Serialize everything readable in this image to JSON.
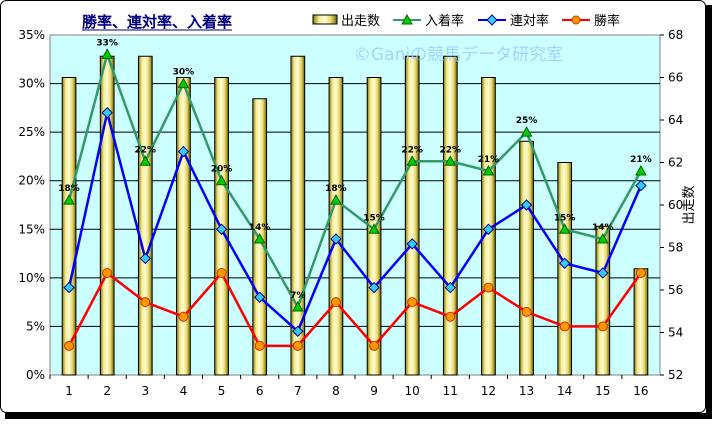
{
  "chart_data": {
    "type": "bar",
    "title": "勝率、連対率、入着率",
    "watermark": "©Ganiの競馬データ研究室",
    "categories": [
      "1",
      "2",
      "3",
      "4",
      "5",
      "6",
      "7",
      "8",
      "9",
      "10",
      "11",
      "12",
      "13",
      "14",
      "15",
      "16"
    ],
    "series": [
      {
        "name": "出走数",
        "type": "bar",
        "axis": "right",
        "color": "#ffff99",
        "values": [
          66,
          67,
          67,
          66,
          66,
          65,
          67,
          66,
          66,
          67,
          67,
          66,
          63,
          62,
          59,
          57
        ]
      },
      {
        "name": "入着率",
        "type": "line",
        "axis": "left",
        "color": "#339966",
        "values": [
          18,
          33,
          22,
          30,
          20,
          14,
          7,
          18,
          15,
          22,
          22,
          21,
          25,
          15,
          14,
          21
        ]
      },
      {
        "name": "連対率",
        "type": "line",
        "axis": "left",
        "color": "#0000ff",
        "values": [
          9,
          27,
          12,
          23,
          15,
          8,
          4.5,
          14,
          9,
          13.5,
          9,
          15,
          17.5,
          11.5,
          10.5,
          19.5
        ]
      },
      {
        "name": "勝率",
        "type": "line",
        "axis": "left",
        "color": "#ff0000",
        "values": [
          3,
          10.5,
          7.5,
          6,
          10.5,
          3,
          3,
          7.5,
          3,
          7.5,
          6,
          9,
          6.5,
          5,
          5,
          10.5
        ]
      }
    ],
    "data_labels": {
      "series": "入着率",
      "labels": [
        "18%",
        "33%",
        "22%",
        "30%",
        "20%",
        "14%",
        "7%",
        "18%",
        "15%",
        "22%",
        "22%",
        "21%",
        "25%",
        "15%",
        "14%",
        "21%"
      ]
    },
    "y_left": {
      "min": 0,
      "max": 35,
      "step": 5,
      "ticks": [
        "0%",
        "5%",
        "10%",
        "15%",
        "20%",
        "25%",
        "30%",
        "35%"
      ]
    },
    "y_right": {
      "min": 52,
      "max": 68,
      "step": 2,
      "label": "出走数",
      "ticks": [
        "52",
        "54",
        "56",
        "58",
        "60",
        "62",
        "64",
        "66",
        "68"
      ]
    },
    "grid": true,
    "legend_position": "top"
  }
}
